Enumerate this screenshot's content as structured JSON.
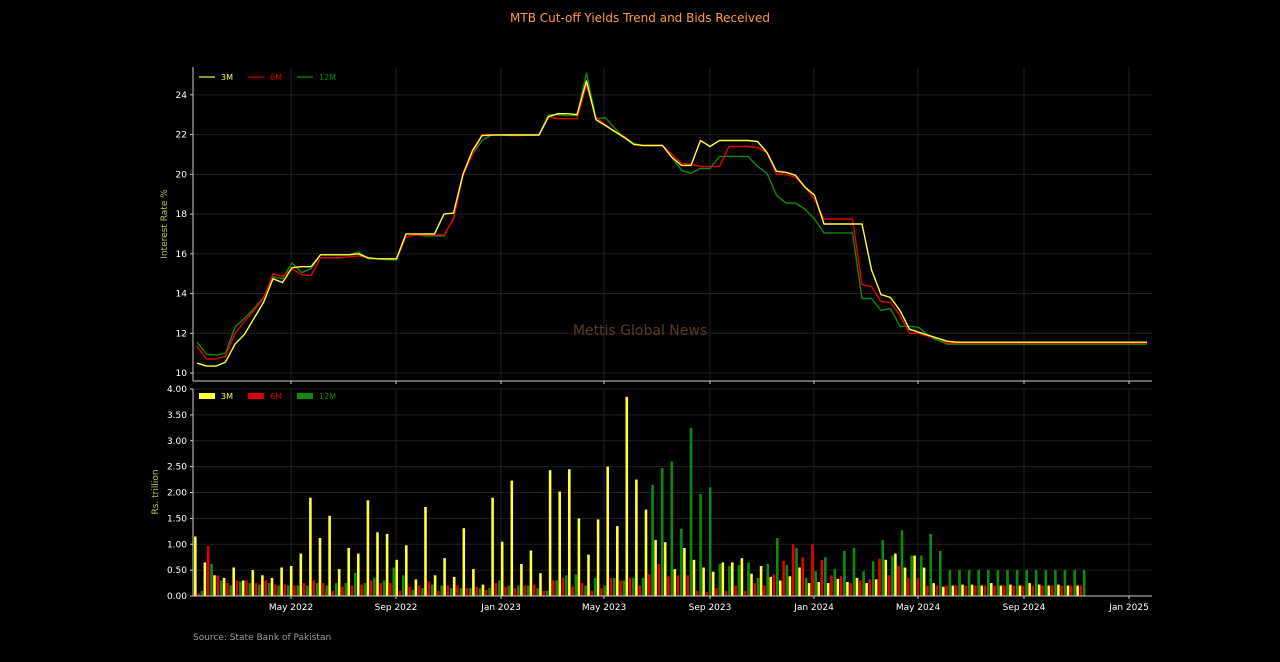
{
  "title": "MTB Cut-off Yields Trend and Bids Received",
  "source": "Source: State Bank of Pakistan",
  "watermark": "Mettis Global News",
  "colors": {
    "3M": "#ffff33",
    "6M": "#e50000",
    "12M": "#0f8a0f",
    "title": "#ff9a3c",
    "axis_label": "#b7c944"
  },
  "chart_data": [
    {
      "type": "line",
      "ylabel": "Interest Rate %",
      "ylim": [
        9.6,
        25.4
      ],
      "yticks": [
        10,
        12,
        14,
        16,
        18,
        20,
        22,
        24
      ],
      "xticks": [
        "May 2022",
        "Sep 2022",
        "Jan 2023",
        "May 2023",
        "Sep 2023",
        "Jan 2024",
        "May 2024",
        "Sep 2024",
        "Jan 2025"
      ],
      "xlim": [
        0,
        100
      ],
      "grid": true,
      "legend": "top-left",
      "x": [
        0,
        1,
        2,
        3,
        4,
        5,
        6,
        7,
        8,
        9,
        10,
        11,
        12,
        13,
        14,
        15,
        16,
        17,
        18,
        19,
        20,
        21,
        22,
        23,
        24,
        25,
        26,
        27,
        28,
        29,
        30,
        31,
        32,
        33,
        34,
        35,
        36,
        37,
        38,
        39,
        40,
        41,
        42,
        43,
        44,
        45,
        46,
        47,
        48,
        49,
        50,
        51,
        52,
        53,
        54,
        55,
        56,
        57,
        58,
        59,
        60,
        61,
        62,
        63,
        64,
        65,
        66,
        67,
        68,
        69,
        70,
        71,
        72,
        73,
        74,
        75,
        76,
        77,
        78,
        79,
        80,
        81,
        82,
        83,
        84,
        85,
        86,
        87,
        88,
        89,
        90,
        91,
        92,
        93,
        94,
        95,
        96,
        97,
        98,
        99,
        100
      ],
      "series": [
        {
          "name": "3M",
          "values": [
            10.5,
            10.35,
            10.35,
            10.55,
            11.45,
            11.95,
            12.75,
            13.55,
            14.75,
            14.55,
            15.3,
            15.35,
            15.35,
            15.95,
            15.95,
            15.95,
            15.95,
            16.0,
            15.8,
            15.75,
            15.75,
            15.75,
            17.0,
            17.0,
            17.0,
            17.0,
            18.0,
            18.05,
            20.0,
            21.2,
            21.95,
            21.98,
            21.98,
            21.98,
            21.98,
            21.98,
            21.98,
            22.9,
            23.05,
            23.05,
            23.0,
            24.7,
            22.75,
            22.45,
            22.15,
            21.85,
            21.5,
            21.45,
            21.45,
            21.45,
            20.85,
            20.45,
            20.45,
            21.7,
            21.4,
            21.7,
            21.7,
            21.7,
            21.7,
            21.65,
            21.1,
            20.15,
            20.1,
            19.95,
            19.35,
            18.95,
            17.5,
            17.5,
            17.5,
            17.5,
            17.5,
            15.2,
            13.95,
            13.8,
            13.15,
            12.2,
            12.05,
            11.9,
            11.75,
            11.6,
            11.55,
            11.55,
            11.55,
            11.55,
            11.55,
            11.55,
            11.55,
            11.55,
            11.55,
            11.55,
            11.55,
            11.55,
            11.55,
            11.55,
            11.55,
            11.55,
            11.55,
            11.55,
            11.55,
            11.55,
            11.55
          ]
        },
        {
          "name": "6M",
          "values": [
            11.35,
            10.7,
            10.7,
            10.85,
            12.0,
            12.6,
            13.15,
            13.75,
            15.0,
            14.85,
            15.25,
            14.95,
            14.9,
            15.8,
            15.8,
            15.8,
            15.85,
            15.9,
            15.8,
            15.75,
            15.75,
            15.75,
            16.85,
            16.95,
            16.95,
            16.95,
            16.95,
            17.75,
            19.95,
            21.0,
            22.0,
            22.0,
            22.0,
            21.95,
            21.95,
            21.98,
            21.98,
            22.9,
            22.8,
            22.8,
            22.8,
            24.5,
            22.85,
            22.5,
            22.15,
            21.9,
            21.5,
            21.45,
            21.45,
            21.45,
            21.0,
            20.55,
            20.5,
            20.4,
            20.4,
            20.4,
            21.4,
            21.4,
            21.4,
            21.35,
            21.1,
            20.0,
            20.0,
            19.85,
            19.35,
            18.75,
            17.75,
            17.75,
            17.75,
            17.75,
            14.45,
            14.35,
            13.6,
            13.55,
            12.9,
            12.0,
            12.0,
            11.85,
            11.75,
            11.5,
            11.5,
            11.5,
            11.5,
            11.5,
            11.5,
            11.5,
            11.5,
            11.5,
            11.5,
            11.5,
            11.5,
            11.5,
            11.5,
            11.5,
            11.5,
            11.5,
            11.5,
            11.5,
            11.5,
            11.5,
            11.5
          ]
        },
        {
          "name": "12M",
          "values": [
            11.55,
            10.95,
            10.9,
            11.0,
            12.3,
            12.75,
            13.25,
            13.8,
            14.85,
            14.75,
            15.55,
            15.05,
            15.25,
            15.95,
            15.95,
            15.95,
            15.95,
            16.1,
            15.75,
            15.75,
            15.7,
            15.7,
            16.85,
            16.95,
            16.9,
            16.9,
            16.9,
            17.8,
            20.0,
            21.0,
            21.7,
            21.98,
            22.0,
            22.0,
            22.0,
            22.0,
            22.0,
            23.0,
            23.0,
            22.95,
            22.95,
            25.1,
            22.8,
            22.85,
            22.3,
            21.85,
            21.55,
            21.45,
            21.45,
            21.45,
            20.85,
            20.2,
            20.05,
            20.3,
            20.3,
            20.9,
            20.9,
            20.9,
            20.9,
            20.4,
            20.05,
            18.95,
            18.55,
            18.55,
            18.25,
            17.75,
            17.05,
            17.05,
            17.05,
            17.05,
            13.75,
            13.75,
            13.15,
            13.25,
            12.35,
            12.35,
            12.3,
            11.85,
            11.65,
            11.45,
            11.45,
            11.45,
            11.45,
            11.45,
            11.45,
            11.45,
            11.45,
            11.45,
            11.45,
            11.45,
            11.45,
            11.45,
            11.45,
            11.45,
            11.45,
            11.45,
            11.45,
            11.45,
            11.45,
            11.45,
            11.45
          ]
        }
      ]
    },
    {
      "type": "bar",
      "ylabel": "Rs. trillion",
      "ylim": [
        0,
        4.0
      ],
      "yticks": [
        "0.00",
        "0.50",
        "1.00",
        "1.50",
        "2.00",
        "2.50",
        "3.00",
        "3.50",
        "4.00"
      ],
      "xticks": [
        "May 2022",
        "Sep 2022",
        "Jan 2023",
        "May 2023",
        "Sep 2023",
        "Jan 2024",
        "May 2024",
        "Sep 2024",
        "Jan 2025"
      ],
      "xlim": [
        0,
        100
      ],
      "grid": true,
      "legend": "top-left",
      "x": [
        0,
        1,
        2,
        3,
        4,
        5,
        6,
        7,
        8,
        9,
        10,
        11,
        12,
        13,
        14,
        15,
        16,
        17,
        18,
        19,
        20,
        21,
        22,
        23,
        24,
        25,
        26,
        27,
        28,
        29,
        30,
        31,
        32,
        33,
        34,
        35,
        36,
        37,
        38,
        39,
        40,
        41,
        42,
        43,
        44,
        45,
        46,
        47,
        48,
        49,
        50,
        51,
        52,
        53,
        54,
        55,
        56,
        57,
        58,
        59,
        60,
        61,
        62,
        63,
        64,
        65,
        66,
        67,
        68,
        69,
        70,
        71,
        72,
        73,
        74,
        75,
        76,
        77,
        78,
        79,
        80,
        81,
        82,
        83,
        84,
        85,
        86,
        87,
        88,
        89,
        90,
        91,
        92
      ],
      "series": [
        {
          "name": "3M",
          "values": [
            1.15,
            0.65,
            0.4,
            0.35,
            0.55,
            0.3,
            0.5,
            0.4,
            0.35,
            0.55,
            0.58,
            0.82,
            1.9,
            1.12,
            1.55,
            0.52,
            0.93,
            0.82,
            1.85,
            1.23,
            1.2,
            0.7,
            0.98,
            0.32,
            1.72,
            0.4,
            0.73,
            0.37,
            1.31,
            0.52,
            0.22,
            1.9,
            1.05,
            2.23,
            0.62,
            0.88,
            0.44,
            2.43,
            2.02,
            2.45,
            1.5,
            0.8,
            1.48,
            2.5,
            1.35,
            3.85,
            2.25,
            1.67,
            1.08,
            1.04,
            0.52,
            0.93,
            0.7,
            0.55,
            0.47,
            0.65,
            0.65,
            0.73,
            0.43,
            0.58,
            0.37,
            0.3,
            0.38,
            0.55,
            0.25,
            0.27,
            0.25,
            0.33,
            0.27,
            0.35,
            0.25,
            0.32,
            0.7,
            0.82,
            0.55,
            0.78,
            0.55,
            0.25,
            0.18,
            0.2,
            0.22,
            0.22,
            0.2,
            0.25,
            0.2,
            0.22,
            0.2,
            0.25,
            0.22,
            0.2,
            0.22,
            0.2,
            0.2
          ]
        },
        {
          "name": "6M",
          "values": [
            0.05,
            0.97,
            0.4,
            0.25,
            0.3,
            0.3,
            0.25,
            0.3,
            0.22,
            0.22,
            0.2,
            0.25,
            0.3,
            0.25,
            0.1,
            0.18,
            0.2,
            0.22,
            0.3,
            0.25,
            0.25,
            0.1,
            0.18,
            0.2,
            0.28,
            0.1,
            0.2,
            0.2,
            0.15,
            0.18,
            0.12,
            0.25,
            0.18,
            0.15,
            0.2,
            0.22,
            0.1,
            0.3,
            0.35,
            0.18,
            0.25,
            0.1,
            0.15,
            0.35,
            0.3,
            0.35,
            0.2,
            0.42,
            0.62,
            0.38,
            0.4,
            0.4,
            0.1,
            0.08,
            0.15,
            0.1,
            0.2,
            0.1,
            0.25,
            0.2,
            0.42,
            0.68,
            1.0,
            0.75,
            1.0,
            0.7,
            0.4,
            0.38,
            0.25,
            0.3,
            0.32,
            0.72,
            0.4,
            0.58,
            0.35,
            0.35,
            0.2,
            0.2,
            0.2,
            0.2,
            0.2,
            0.2,
            0.2,
            0.2,
            0.2,
            0.2,
            0.2,
            0.2,
            0.2,
            0.2,
            0.2,
            0.2,
            0.2
          ]
        },
        {
          "name": "12M",
          "values": [
            0.1,
            0.62,
            0.3,
            0.2,
            0.28,
            0.25,
            0.22,
            0.25,
            0.2,
            0.2,
            0.2,
            0.2,
            0.25,
            0.2,
            0.25,
            0.25,
            0.45,
            0.25,
            0.35,
            0.3,
            0.55,
            0.4,
            0.12,
            0.15,
            0.22,
            0.2,
            0.15,
            0.15,
            0.15,
            0.15,
            0.15,
            0.3,
            0.2,
            0.2,
            0.2,
            0.15,
            0.1,
            0.3,
            0.4,
            0.42,
            0.2,
            0.35,
            0.2,
            0.35,
            0.3,
            0.35,
            0.35,
            2.15,
            2.47,
            2.6,
            1.3,
            3.25,
            1.97,
            2.1,
            0.62,
            0.58,
            0.6,
            0.65,
            0.35,
            0.62,
            1.12,
            0.6,
            0.93,
            0.35,
            0.48,
            0.75,
            0.52,
            0.87,
            0.93,
            0.48,
            0.67,
            1.08,
            0.78,
            1.27,
            0.78,
            0.78,
            1.2,
            0.87,
            0.5,
            0.5,
            0.5,
            0.5,
            0.5,
            0.5,
            0.5,
            0.5,
            0.5,
            0.5,
            0.5,
            0.5,
            0.5,
            0.5,
            0.5
          ]
        }
      ]
    }
  ]
}
